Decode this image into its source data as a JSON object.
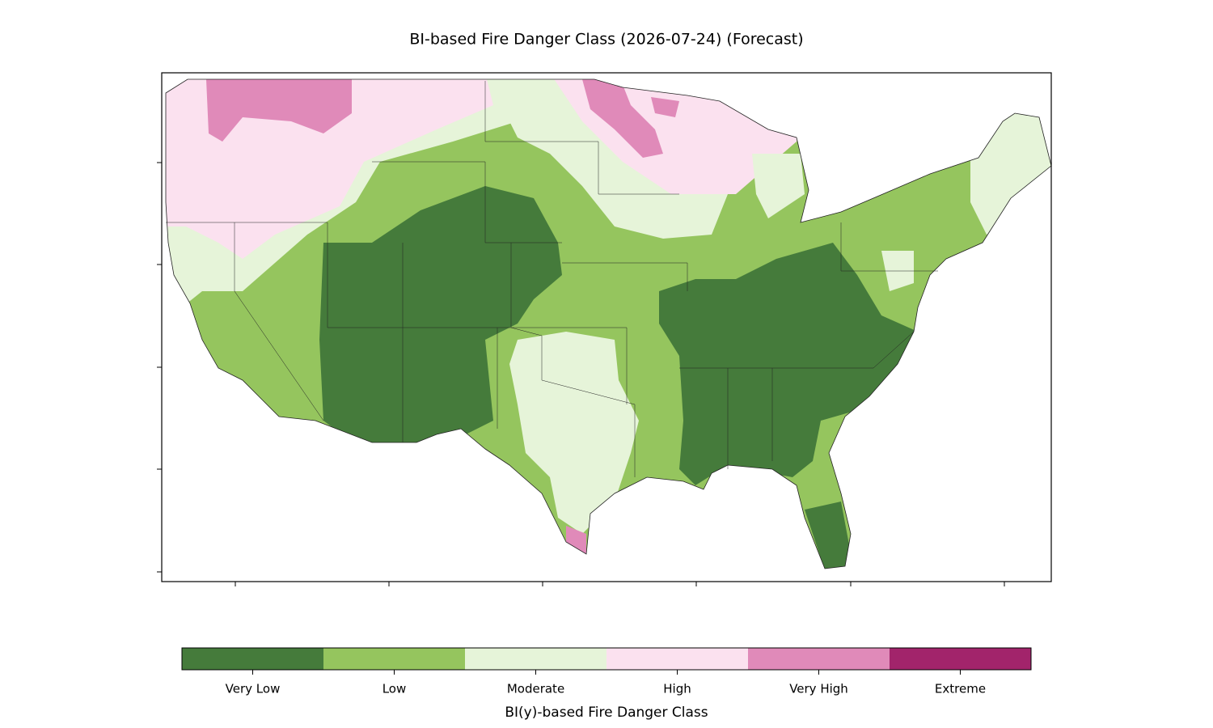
{
  "title": "BI-based Fire Danger Class (2026-07-24) (Forecast)",
  "colorbar": {
    "label": "BI(y)-based Fire Danger Class",
    "classes": [
      {
        "name": "Very Low",
        "color": "#457b3b"
      },
      {
        "name": "Low",
        "color": "#95c55e"
      },
      {
        "name": "Moderate",
        "color": "#e6f4d9"
      },
      {
        "name": "High",
        "color": "#fbe1ef"
      },
      {
        "name": "Very High",
        "color": "#e08ab9"
      },
      {
        "name": "Extreme",
        "color": "#a2246b"
      }
    ]
  }
}
